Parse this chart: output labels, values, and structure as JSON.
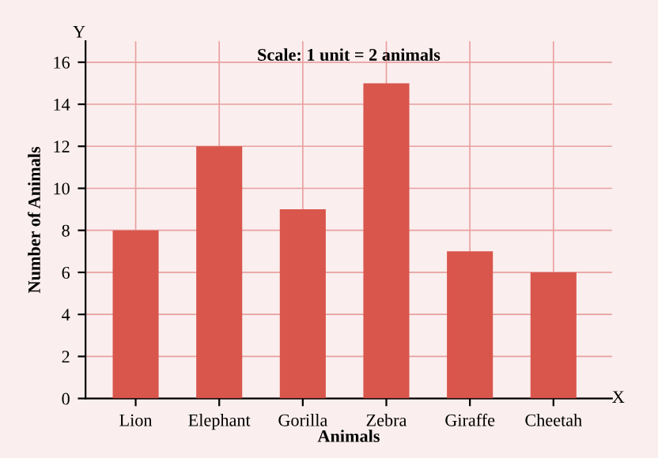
{
  "chart_data": {
    "type": "bar",
    "title": "Scale: 1 unit = 2 animals",
    "xlabel": "Animals",
    "ylabel": "Number of Animals",
    "categories": [
      "Lion",
      "Elephant",
      "Gorilla",
      "Zebra",
      "Giraffe",
      "Cheetah"
    ],
    "values": [
      8,
      12,
      9,
      15,
      7,
      6
    ],
    "color": "#d9564c",
    "ylim": [
      0,
      17
    ],
    "yticks": [
      0,
      2,
      4,
      6,
      8,
      10,
      12,
      14,
      16
    ],
    "grid": true,
    "annotations": [
      "Y",
      "X"
    ]
  }
}
